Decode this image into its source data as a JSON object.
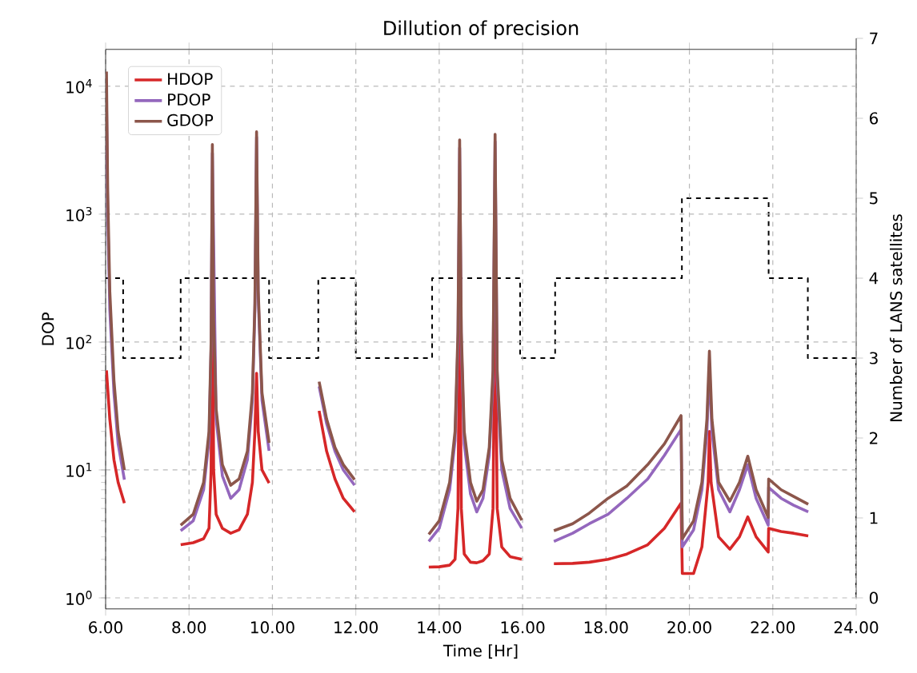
{
  "chart_data": {
    "type": "line",
    "title": "Dillution of precision",
    "xlabel": "Time [Hr]",
    "ylabel": "DOP",
    "y2label": "Number of LANS satellites",
    "xlim": [
      6,
      24
    ],
    "ylim": [
      0.82,
      19400
    ],
    "y2lim": [
      0,
      7
    ],
    "log": "y",
    "grid": true,
    "legend": "top left",
    "xticks": [
      {
        "value": 6,
        "label": "6.00"
      },
      {
        "value": 8,
        "label": "8.00"
      },
      {
        "value": 10,
        "label": "10.00"
      },
      {
        "value": 12,
        "label": "12.00"
      },
      {
        "value": 14,
        "label": "14.00"
      },
      {
        "value": 16,
        "label": "16.00"
      },
      {
        "value": 18,
        "label": "18.00"
      },
      {
        "value": 20,
        "label": "20.00"
      },
      {
        "value": 22,
        "label": "22.00"
      },
      {
        "value": 24,
        "label": "24.00"
      }
    ],
    "yticks": [
      {
        "value": 1,
        "label": "10$^{0}$"
      },
      {
        "value": 10,
        "label": "10$^{1}$"
      },
      {
        "value": 100,
        "label": "10$^{2}$"
      },
      {
        "value": 1000,
        "label": "10$^{3}$"
      },
      {
        "value": 10000,
        "label": "10$^{4}$"
      }
    ],
    "y2ticks": [
      0,
      1,
      2,
      3,
      4,
      5,
      6,
      7
    ],
    "series": [
      {
        "name": "HDOP",
        "color": "#d62728",
        "x": [
          6.02,
          6.1,
          6.2,
          6.3,
          6.45,
          7.1,
          7.8,
          8.1,
          8.35,
          8.48,
          8.53,
          8.56,
          8.59,
          8.65,
          8.8,
          9.0,
          9.2,
          9.4,
          9.52,
          9.58,
          9.62,
          9.66,
          9.75,
          9.92,
          10.5,
          11.12,
          11.3,
          11.5,
          11.7,
          11.97,
          12.9,
          13.75,
          14.0,
          14.25,
          14.38,
          14.45,
          14.49,
          14.53,
          14.6,
          14.75,
          14.9,
          15.05,
          15.2,
          15.29,
          15.34,
          15.39,
          15.5,
          15.7,
          15.98,
          16.4,
          16.75,
          17.2,
          17.6,
          18.05,
          18.5,
          19.0,
          19.4,
          19.8,
          19.83,
          20.1,
          20.3,
          20.45,
          20.48,
          20.52,
          20.7,
          20.97,
          21.2,
          21.4,
          21.6,
          21.89,
          21.9,
          22.2,
          22.5,
          22.85
        ],
        "values": [
          60,
          25,
          12,
          8,
          5.5,
          null,
          2.6,
          2.7,
          2.9,
          3.5,
          10,
          500,
          10,
          4.5,
          3.5,
          3.2,
          3.4,
          4.5,
          8,
          20,
          57,
          20,
          10,
          7.9,
          null,
          29,
          14,
          8.5,
          6,
          4.7,
          null,
          1.74,
          1.75,
          1.8,
          2.0,
          5,
          300,
          5,
          2.2,
          1.9,
          1.88,
          1.95,
          2.2,
          5,
          300,
          5,
          2.5,
          2.1,
          2.0,
          null,
          1.85,
          1.86,
          1.9,
          2.0,
          2.2,
          2.6,
          3.5,
          5.5,
          1.55,
          1.55,
          2.5,
          8,
          20,
          8,
          3,
          2.4,
          3,
          4.3,
          3,
          2.28,
          3.5,
          3.3,
          3.2,
          3.05
        ]
      },
      {
        "name": "PDOP",
        "color": "#9467bd",
        "x": [
          6.02,
          6.05,
          6.1,
          6.2,
          6.3,
          6.45,
          7.1,
          7.8,
          8.1,
          8.35,
          8.48,
          8.53,
          8.56,
          8.65,
          8.8,
          9.0,
          9.2,
          9.4,
          9.52,
          9.58,
          9.62,
          9.66,
          9.75,
          9.92,
          10.5,
          11.12,
          11.3,
          11.5,
          11.7,
          11.97,
          12.9,
          13.75,
          14.0,
          14.25,
          14.38,
          14.45,
          14.49,
          14.53,
          14.6,
          14.75,
          14.9,
          15.05,
          15.2,
          15.29,
          15.34,
          15.39,
          15.5,
          15.7,
          15.98,
          16.4,
          16.75,
          17.2,
          17.6,
          18.05,
          18.5,
          19.0,
          19.4,
          19.8,
          19.83,
          20.1,
          20.3,
          20.42,
          20.48,
          20.54,
          20.7,
          20.97,
          21.2,
          21.4,
          21.6,
          21.89,
          21.9,
          22.2,
          22.5,
          22.85
        ],
        "values": [
          8000,
          1000,
          180,
          40,
          16,
          8.4,
          null,
          3.35,
          4.0,
          7,
          17,
          90,
          3000,
          25,
          9,
          6.0,
          7,
          12,
          35,
          180,
          4000,
          220,
          35,
          14.1,
          null,
          45,
          23,
          14,
          10,
          7.6,
          null,
          2.76,
          3.5,
          7,
          17,
          100,
          3300,
          100,
          16,
          6.5,
          4.7,
          6,
          13,
          50,
          3700,
          50,
          10,
          5,
          3.5,
          null,
          2.76,
          3.2,
          3.8,
          4.5,
          6,
          8.5,
          13,
          20.7,
          2.5,
          3.4,
          7,
          20,
          65,
          20,
          7,
          4.7,
          7,
          11,
          6,
          3.7,
          7.3,
          6,
          5.3,
          4.7
        ]
      },
      {
        "name": "GDOP",
        "color": "#8c564b",
        "x": [
          6.02,
          6.05,
          6.1,
          6.2,
          6.3,
          6.45,
          7.1,
          7.8,
          8.1,
          8.35,
          8.48,
          8.53,
          8.56,
          8.59,
          8.65,
          8.8,
          9.0,
          9.2,
          9.4,
          9.52,
          9.58,
          9.62,
          9.66,
          9.75,
          9.92,
          10.5,
          11.12,
          11.3,
          11.5,
          11.7,
          11.97,
          12.9,
          13.75,
          14.0,
          14.25,
          14.38,
          14.45,
          14.49,
          14.53,
          14.6,
          14.75,
          14.9,
          15.05,
          15.2,
          15.29,
          15.34,
          15.39,
          15.5,
          15.7,
          15.98,
          16.4,
          16.75,
          17.2,
          17.6,
          18.05,
          18.5,
          19.0,
          19.4,
          19.8,
          19.83,
          20.1,
          20.3,
          20.42,
          20.48,
          20.54,
          20.7,
          20.97,
          21.2,
          21.4,
          21.6,
          21.89,
          21.9,
          22.2,
          22.5,
          22.85
        ],
        "values": [
          13000,
          1500,
          250,
          50,
          20,
          10,
          null,
          3.7,
          4.5,
          8,
          20,
          100,
          3500,
          150,
          30,
          11,
          7.6,
          8.5,
          14,
          40,
          200,
          4400,
          250,
          40,
          16.3,
          null,
          49,
          25,
          15,
          11,
          8.4,
          null,
          3.13,
          4.0,
          8,
          20,
          120,
          3800,
          120,
          20,
          8,
          5.7,
          7,
          15,
          60,
          4200,
          60,
          12,
          6,
          4.05,
          null,
          3.35,
          3.8,
          4.6,
          6.0,
          7.5,
          11,
          16,
          26.6,
          2.9,
          4,
          8,
          25,
          85,
          25,
          8,
          5.7,
          8,
          12.8,
          7,
          4.26,
          8.5,
          7,
          6.2,
          5.4
        ]
      },
      {
        "type": "step",
        "axis": "y2",
        "color": "#000000",
        "line_style": "dashed",
        "x": [
          6,
          6.42,
          7.8,
          9.92,
          11.1,
          12.0,
          13.83,
          15.94,
          16.78,
          19.82,
          21.9,
          22.84,
          24
        ],
        "values": [
          4,
          3,
          4,
          3,
          4,
          3,
          4,
          3,
          4,
          5,
          4,
          3,
          0
        ]
      }
    ]
  }
}
